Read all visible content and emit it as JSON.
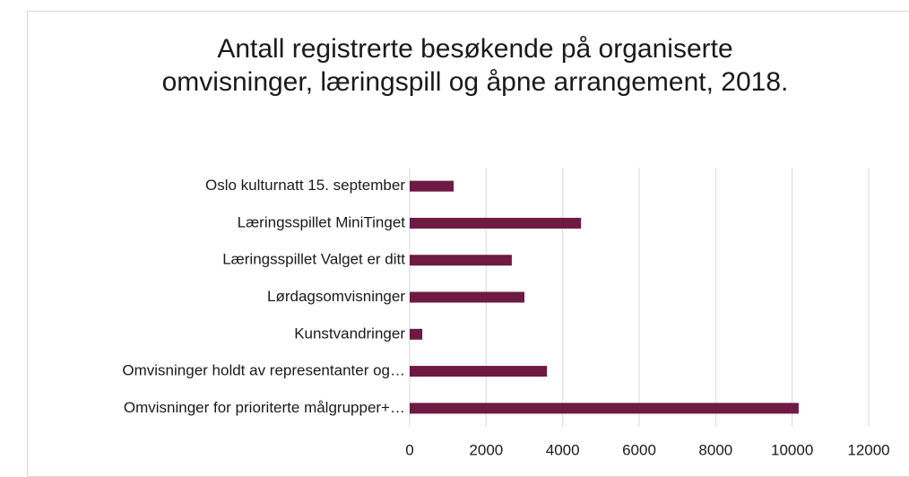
{
  "chart_data": {
    "type": "bar",
    "orientation": "horizontal",
    "title": "Antall registrerte besøkende på organiserte omvisninger, læringspill og åpne arrangement, 2018.",
    "categories": [
      "Oslo kulturnatt 15. september",
      "Læringsspillet MiniTinget",
      "Læringsspillet Valget er ditt",
      "Lørdagsomvisninger",
      "Kunstvandringer",
      "Omvisninger holdt av representanter og…",
      "Omvisninger for prioriterte målgrupper+…"
    ],
    "values": [
      1150,
      4480,
      2670,
      3000,
      330,
      3590,
      10170
    ],
    "color": "#6e1a42",
    "xlim": [
      0,
      12000
    ],
    "xticks": [
      0,
      2000,
      4000,
      6000,
      8000,
      10000,
      12000
    ],
    "grid": true
  }
}
